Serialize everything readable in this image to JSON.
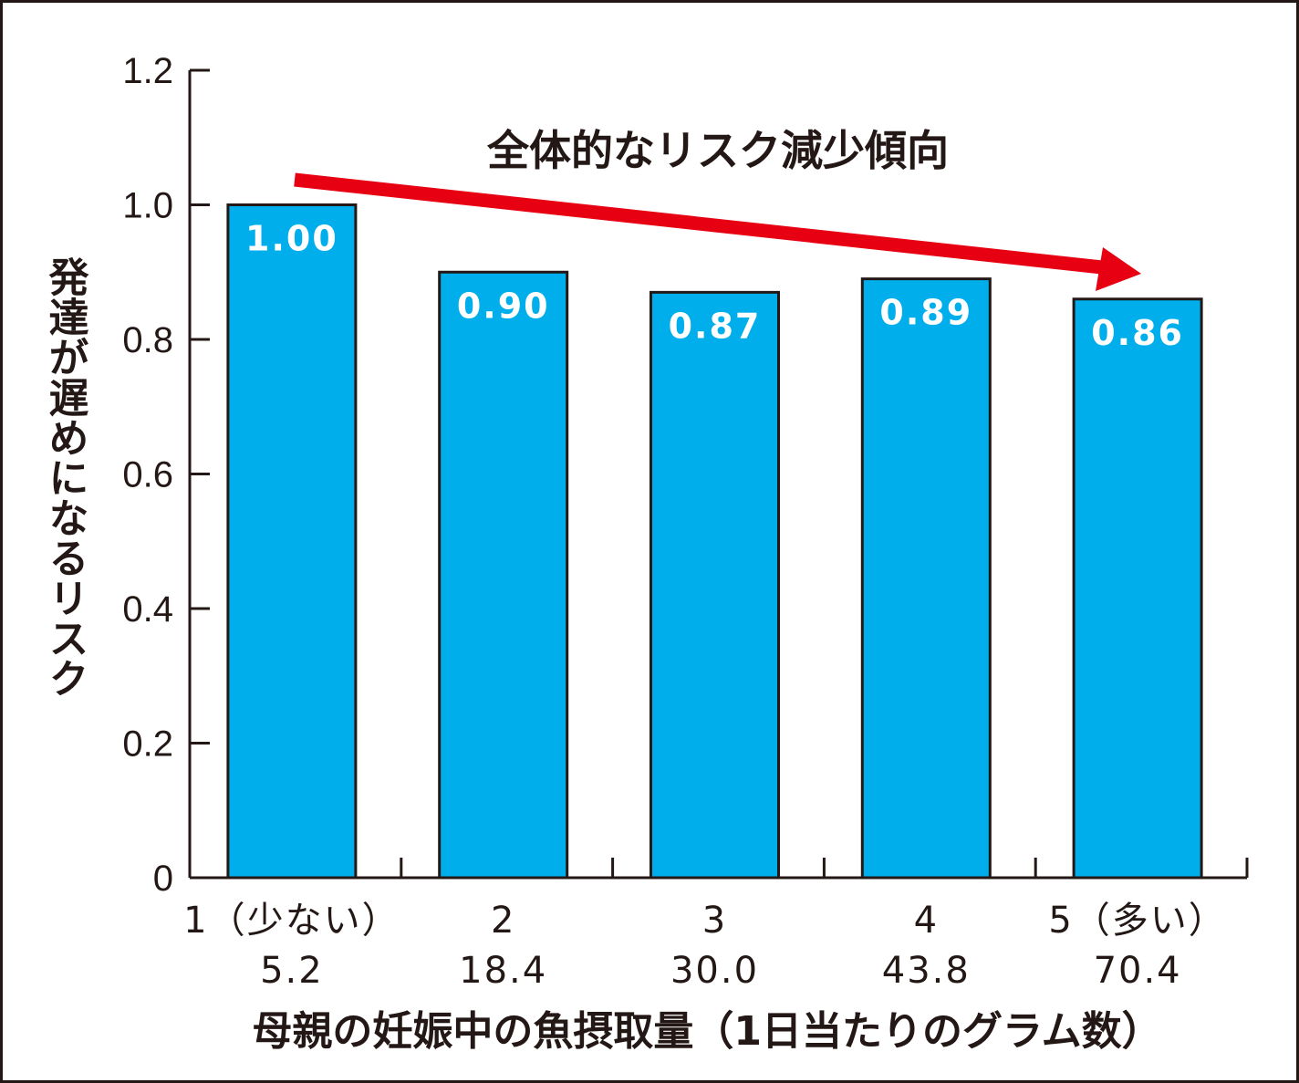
{
  "chart_data": {
    "type": "bar",
    "categories": [
      "1（少ない）",
      "2",
      "3",
      "4",
      "5（多い）"
    ],
    "category_sublabels": [
      "5.2",
      "18.4",
      "30.0",
      "43.8",
      "70.4"
    ],
    "values": [
      1.0,
      0.9,
      0.87,
      0.89,
      0.86
    ],
    "value_labels": [
      "1.00",
      "0.90",
      "0.87",
      "0.89",
      "0.86"
    ],
    "title": "",
    "xlabel": "母親の妊娠中の魚摂取量（1日当たりのグラム数）",
    "ylabel": "発達が遅めになるリスク",
    "ylim": [
      0,
      1.2
    ],
    "yticks": [
      0,
      0.2,
      0.4,
      0.6,
      0.8,
      1.0,
      1.2
    ],
    "ytick_labels": [
      "0",
      "0.2",
      "0.4",
      "0.6",
      "0.8",
      "1.0",
      "1.2"
    ],
    "annotation": "全体的なリスク減少傾向",
    "grid": false,
    "legend": "none",
    "colors": {
      "bar_fill": "#00aeeb",
      "bar_stroke": "#231815",
      "axis": "#231815",
      "trend_arrow": "#e60012",
      "value_text": "#ffffff"
    }
  }
}
